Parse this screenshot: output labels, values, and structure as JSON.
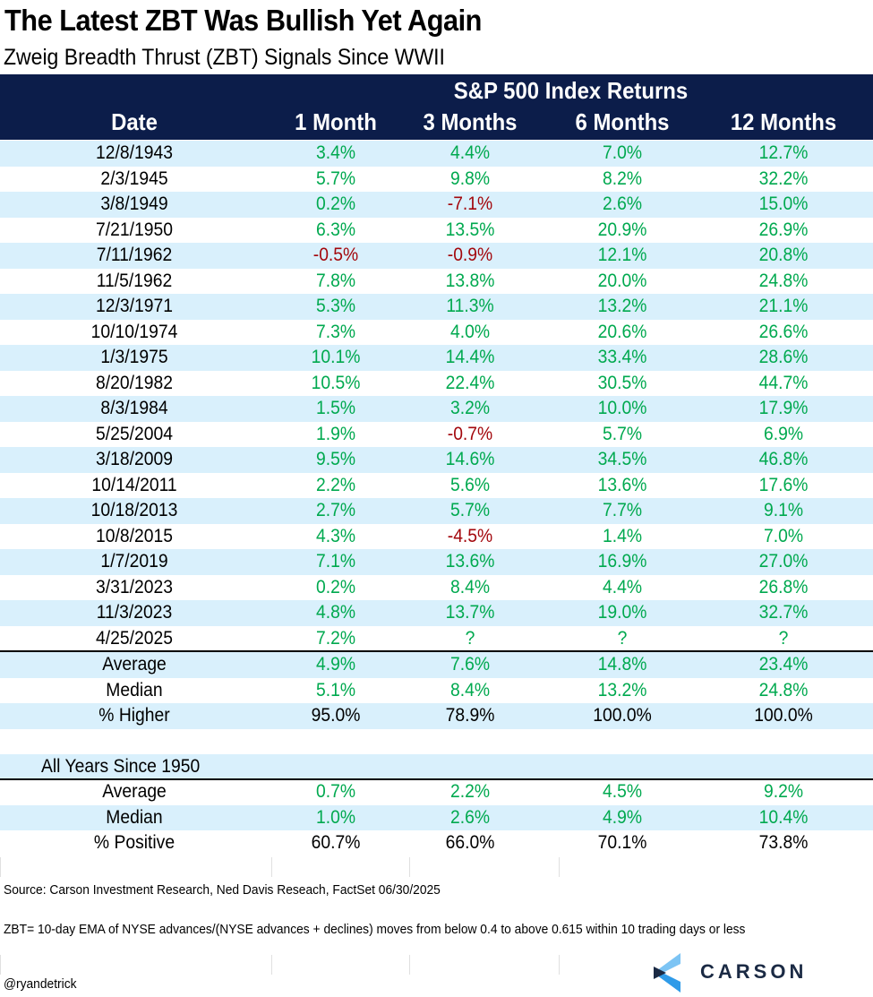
{
  "title": "The Latest ZBT Was Bullish Yet Again",
  "subtitle": "Zweig Breadth Thrust (ZBT) Signals Since WWII",
  "header": {
    "group_label": "S&P 500 Index Returns",
    "columns": [
      "Date",
      "1 Month",
      "3 Months",
      "6 Months",
      "12 Months"
    ]
  },
  "colors": {
    "header_bg": "#0c1d4a",
    "shade": "#d9f0fc",
    "positive": "#00a94f",
    "negative": "#a3080d",
    "logo_dark": "#1b2a44",
    "logo_blue": "#2f9be8"
  },
  "signals": [
    {
      "date": "12/8/1943",
      "values": [
        "3.4%",
        "4.4%",
        "7.0%",
        "12.7%"
      ]
    },
    {
      "date": "2/3/1945",
      "values": [
        "5.7%",
        "9.8%",
        "8.2%",
        "32.2%"
      ]
    },
    {
      "date": "3/8/1949",
      "values": [
        "0.2%",
        "-7.1%",
        "2.6%",
        "15.0%"
      ]
    },
    {
      "date": "7/21/1950",
      "values": [
        "6.3%",
        "13.5%",
        "20.9%",
        "26.9%"
      ]
    },
    {
      "date": "7/11/1962",
      "values": [
        "-0.5%",
        "-0.9%",
        "12.1%",
        "20.8%"
      ]
    },
    {
      "date": "11/5/1962",
      "values": [
        "7.8%",
        "13.8%",
        "20.0%",
        "24.8%"
      ]
    },
    {
      "date": "12/3/1971",
      "values": [
        "5.3%",
        "11.3%",
        "13.2%",
        "21.1%"
      ]
    },
    {
      "date": "10/10/1974",
      "values": [
        "7.3%",
        "4.0%",
        "20.6%",
        "26.6%"
      ]
    },
    {
      "date": "1/3/1975",
      "values": [
        "10.1%",
        "14.4%",
        "33.4%",
        "28.6%"
      ]
    },
    {
      "date": "8/20/1982",
      "values": [
        "10.5%",
        "22.4%",
        "30.5%",
        "44.7%"
      ]
    },
    {
      "date": "8/3/1984",
      "values": [
        "1.5%",
        "3.2%",
        "10.0%",
        "17.9%"
      ]
    },
    {
      "date": "5/25/2004",
      "values": [
        "1.9%",
        "-0.7%",
        "5.7%",
        "6.9%"
      ]
    },
    {
      "date": "3/18/2009",
      "values": [
        "9.5%",
        "14.6%",
        "34.5%",
        "46.8%"
      ]
    },
    {
      "date": "10/14/2011",
      "values": [
        "2.2%",
        "5.6%",
        "13.6%",
        "17.6%"
      ]
    },
    {
      "date": "10/18/2013",
      "values": [
        "2.7%",
        "5.7%",
        "7.7%",
        "9.1%"
      ]
    },
    {
      "date": "10/8/2015",
      "values": [
        "4.3%",
        "-4.5%",
        "1.4%",
        "7.0%"
      ]
    },
    {
      "date": "1/7/2019",
      "values": [
        "7.1%",
        "13.6%",
        "16.9%",
        "27.0%"
      ]
    },
    {
      "date": "3/31/2023",
      "values": [
        "0.2%",
        "8.4%",
        "4.4%",
        "26.8%"
      ]
    },
    {
      "date": "11/3/2023",
      "values": [
        "4.8%",
        "13.7%",
        "19.0%",
        "32.7%"
      ]
    },
    {
      "date": "4/25/2025",
      "values": [
        "7.2%",
        "?",
        "?",
        "?"
      ]
    }
  ],
  "summary": [
    {
      "label": "Average",
      "values": [
        "4.9%",
        "7.6%",
        "14.8%",
        "23.4%"
      ],
      "style": "pos"
    },
    {
      "label": "Median",
      "values": [
        "5.1%",
        "8.4%",
        "13.2%",
        "24.8%"
      ],
      "style": "pos"
    },
    {
      "label": "% Higher",
      "values": [
        "95.0%",
        "78.9%",
        "100.0%",
        "100.0%"
      ],
      "style": "blk"
    }
  ],
  "all_years": {
    "label": "All Years Since 1950",
    "rows": [
      {
        "label": "Average",
        "values": [
          "0.7%",
          "2.2%",
          "4.5%",
          "9.2%"
        ],
        "style": "pos"
      },
      {
        "label": "Median",
        "values": [
          "1.0%",
          "2.6%",
          "4.9%",
          "10.4%"
        ],
        "style": "pos"
      },
      {
        "label": "% Positive",
        "values": [
          "60.7%",
          "66.0%",
          "70.1%",
          "73.8%"
        ],
        "style": "blk"
      }
    ]
  },
  "footer": {
    "source": "Source: Carson Investment Research, Ned Davis Reseach, FactSet 06/30/2025",
    "note": "ZBT= 10-day EMA of NYSE advances/(NYSE advances + declines) moves from below 0.4 to above 0.615 within 10 trading days or less",
    "handle": "@ryandetrick",
    "logo_text": "CARSON",
    "logo_icon": "carson-chevron-icon"
  }
}
